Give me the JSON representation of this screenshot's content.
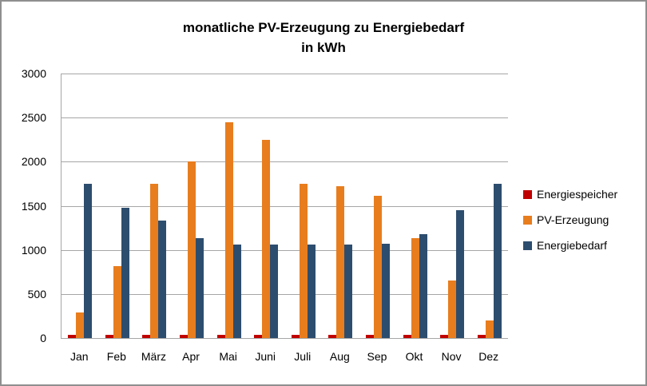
{
  "window": {
    "background": "#ffffff",
    "border_color": "#8f8f8f"
  },
  "chart_data": {
    "type": "bar",
    "title_line1": "monatliche PV-Erzeugung zu Energiebedarf",
    "title_line2": "in kWh",
    "categories": [
      "Jan",
      "Feb",
      "März",
      "Apr",
      "Mai",
      "Juni",
      "Juli",
      "Aug",
      "Sep",
      "Okt",
      "Nov",
      "Dez"
    ],
    "series": [
      {
        "name": "Energiespeicher",
        "color": "#c00000",
        "values": [
          40,
          40,
          40,
          40,
          40,
          40,
          40,
          40,
          40,
          40,
          40,
          40
        ]
      },
      {
        "name": "PV-Erzeugung",
        "color": "#e87d1e",
        "values": [
          290,
          820,
          1750,
          2000,
          2450,
          2250,
          1750,
          1720,
          1610,
          1130,
          650,
          200
        ]
      },
      {
        "name": "Energiebedarf",
        "color": "#2d4d6e",
        "values": [
          1750,
          1480,
          1330,
          1130,
          1060,
          1060,
          1060,
          1060,
          1070,
          1180,
          1450,
          1750
        ]
      }
    ],
    "xlabel": "",
    "ylabel": "",
    "ylim": [
      0,
      3000
    ],
    "yticks": [
      0,
      500,
      1000,
      1500,
      2000,
      2500,
      3000
    ],
    "grid": true,
    "gridline_color": "#a6a6a6",
    "axis_line_color": "#a6a6a6",
    "legend_position": "right"
  }
}
